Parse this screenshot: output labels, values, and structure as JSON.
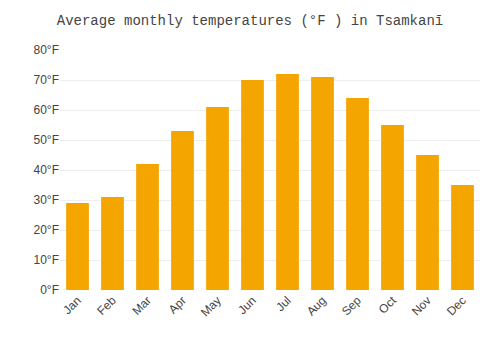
{
  "chart_data": {
    "type": "bar",
    "title": "Average monthly temperatures (°F ) in Tsamkanī",
    "categories": [
      "Jan",
      "Feb",
      "Mar",
      "Apr",
      "May",
      "Jun",
      "Jul",
      "Aug",
      "Sep",
      "Oct",
      "Nov",
      "Dec"
    ],
    "values": [
      29,
      31,
      42,
      53,
      61,
      70,
      72,
      71,
      64,
      55,
      45,
      35
    ],
    "color": "#F5A500",
    "ylim": [
      0,
      80
    ],
    "yticks": [
      {
        "value": 0,
        "label": "0°F"
      },
      {
        "value": 10,
        "label": "10°F"
      },
      {
        "value": 20,
        "label": "20°F"
      },
      {
        "value": 30,
        "label": "30°F"
      },
      {
        "value": 40,
        "label": "40°F"
      },
      {
        "value": 50,
        "label": "50°F"
      },
      {
        "value": 60,
        "label": "60°F"
      },
      {
        "value": 70,
        "label": "70°F"
      },
      {
        "value": 80,
        "label": "80°F"
      }
    ],
    "grid": true
  }
}
